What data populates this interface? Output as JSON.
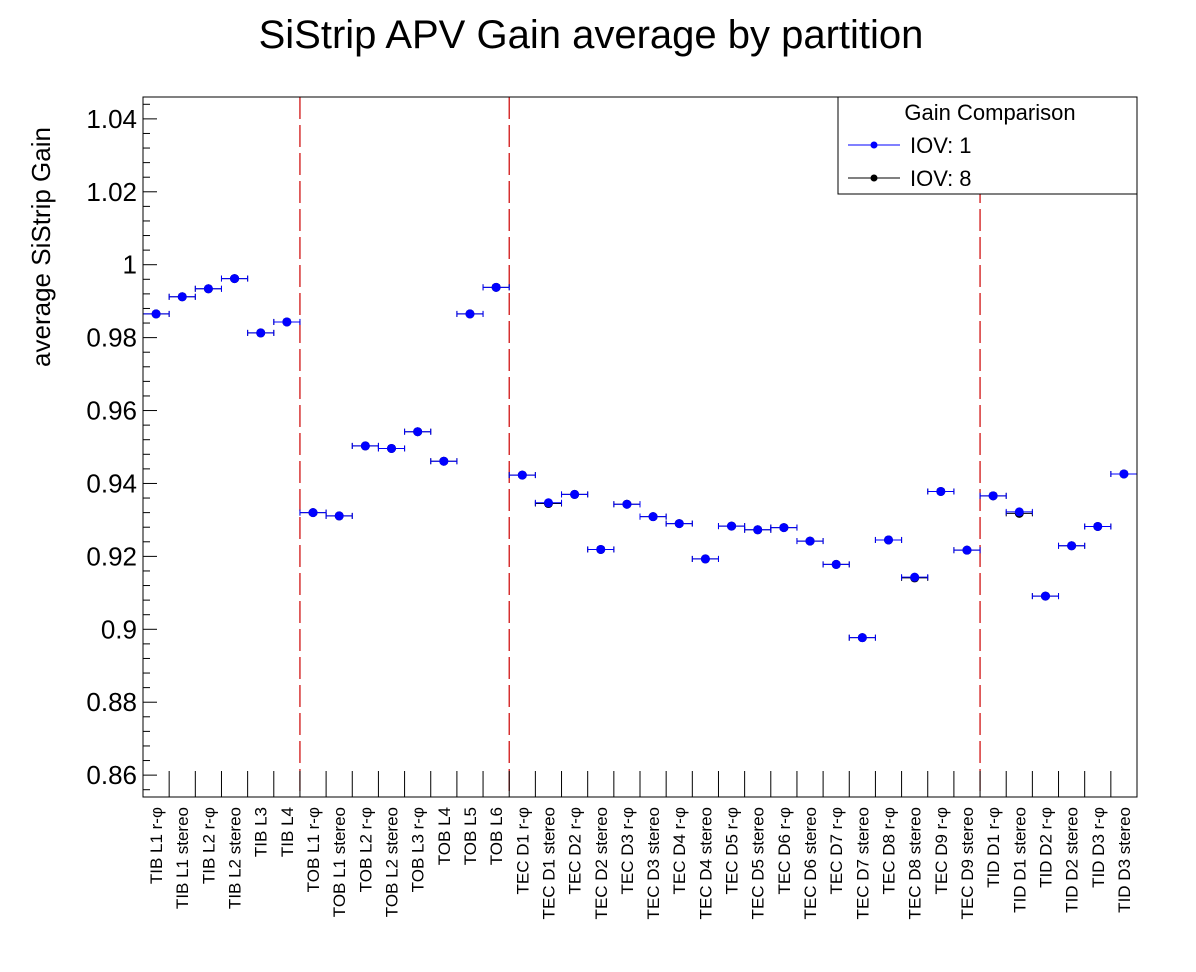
{
  "chart_data": {
    "type": "scatter",
    "title": "SiStrip APV Gain average by partition",
    "ylabel": "average SiStrip Gain",
    "xlabel": "",
    "ylim": [
      0.854,
      1.046
    ],
    "yticks": [
      0.86,
      0.88,
      0.9,
      0.92,
      0.94,
      0.96,
      0.98,
      1,
      1.02,
      1.04
    ],
    "ytick_labels": [
      "0.86",
      "0.88",
      "0.9",
      "0.92",
      "0.94",
      "0.96",
      "0.98",
      "1",
      "1.02",
      "1.04"
    ],
    "categories": [
      "TIB L1 r-φ",
      "TIB L1 stereo",
      "TIB L2 r-φ",
      "TIB L2 stereo",
      "TIB L3",
      "TIB L4",
      "TOB L1 r-φ",
      "TOB L1 stereo",
      "TOB L2 r-φ",
      "TOB L2 stereo",
      "TOB L3 r-φ",
      "TOB L4",
      "TOB L5",
      "TOB L6",
      "TEC D1 r-φ",
      "TEC D1 stereo",
      "TEC D2 r-φ",
      "TEC D2 stereo",
      "TEC D3 r-φ",
      "TEC D3 stereo",
      "TEC D4 r-φ",
      "TEC D4 stereo",
      "TEC D5 r-φ",
      "TEC D5 stereo",
      "TEC D6 r-φ",
      "TEC D6 stereo",
      "TEC D7 r-φ",
      "TEC D7 stereo",
      "TEC D8 r-φ",
      "TEC D8 stereo",
      "TEC D9 r-φ",
      "TEC D9 stereo",
      "TID D1 r-φ",
      "TID D1 stereo",
      "TID D2 r-φ",
      "TID D2 stereo",
      "TID D3 r-φ",
      "TID D3 stereo"
    ],
    "series": [
      {
        "name": "IOV: 1",
        "color": "#0000ff",
        "values": [
          0.9865,
          0.9912,
          0.9934,
          0.9962,
          0.9813,
          0.9843,
          0.932,
          0.9311,
          0.9503,
          0.9496,
          0.9542,
          0.9461,
          0.9865,
          0.9938,
          0.9423,
          0.9347,
          0.937,
          0.9219,
          0.9343,
          0.9309,
          0.929,
          0.9193,
          0.9283,
          0.9273,
          0.9279,
          0.9242,
          0.9178,
          0.8977,
          0.9245,
          0.9143,
          0.9378,
          0.9217,
          0.9366,
          0.9322,
          0.9091,
          0.9229,
          0.9282,
          0.9426
        ]
      },
      {
        "name": "IOV: 8",
        "color": "#000000",
        "values": [
          0.9865,
          0.9912,
          0.9934,
          0.9962,
          0.9813,
          0.9843,
          0.932,
          0.9311,
          0.9503,
          0.9496,
          0.9542,
          0.9461,
          0.9865,
          0.9938,
          0.9423,
          0.9345,
          0.937,
          0.9219,
          0.9343,
          0.9309,
          0.929,
          0.9193,
          0.9283,
          0.9273,
          0.9279,
          0.9242,
          0.9178,
          0.8977,
          0.9245,
          0.9141,
          0.9378,
          0.9217,
          0.9366,
          0.9318,
          0.9091,
          0.9229,
          0.9282,
          0.9426
        ]
      }
    ],
    "partition_boundaries_after_index": [
      5,
      13,
      31
    ],
    "boundary_color": "#cc0000",
    "legend": {
      "title": "Gain Comparison",
      "position": "top-right",
      "entries": [
        "IOV: 1",
        "IOV: 8"
      ]
    },
    "grid": false
  }
}
